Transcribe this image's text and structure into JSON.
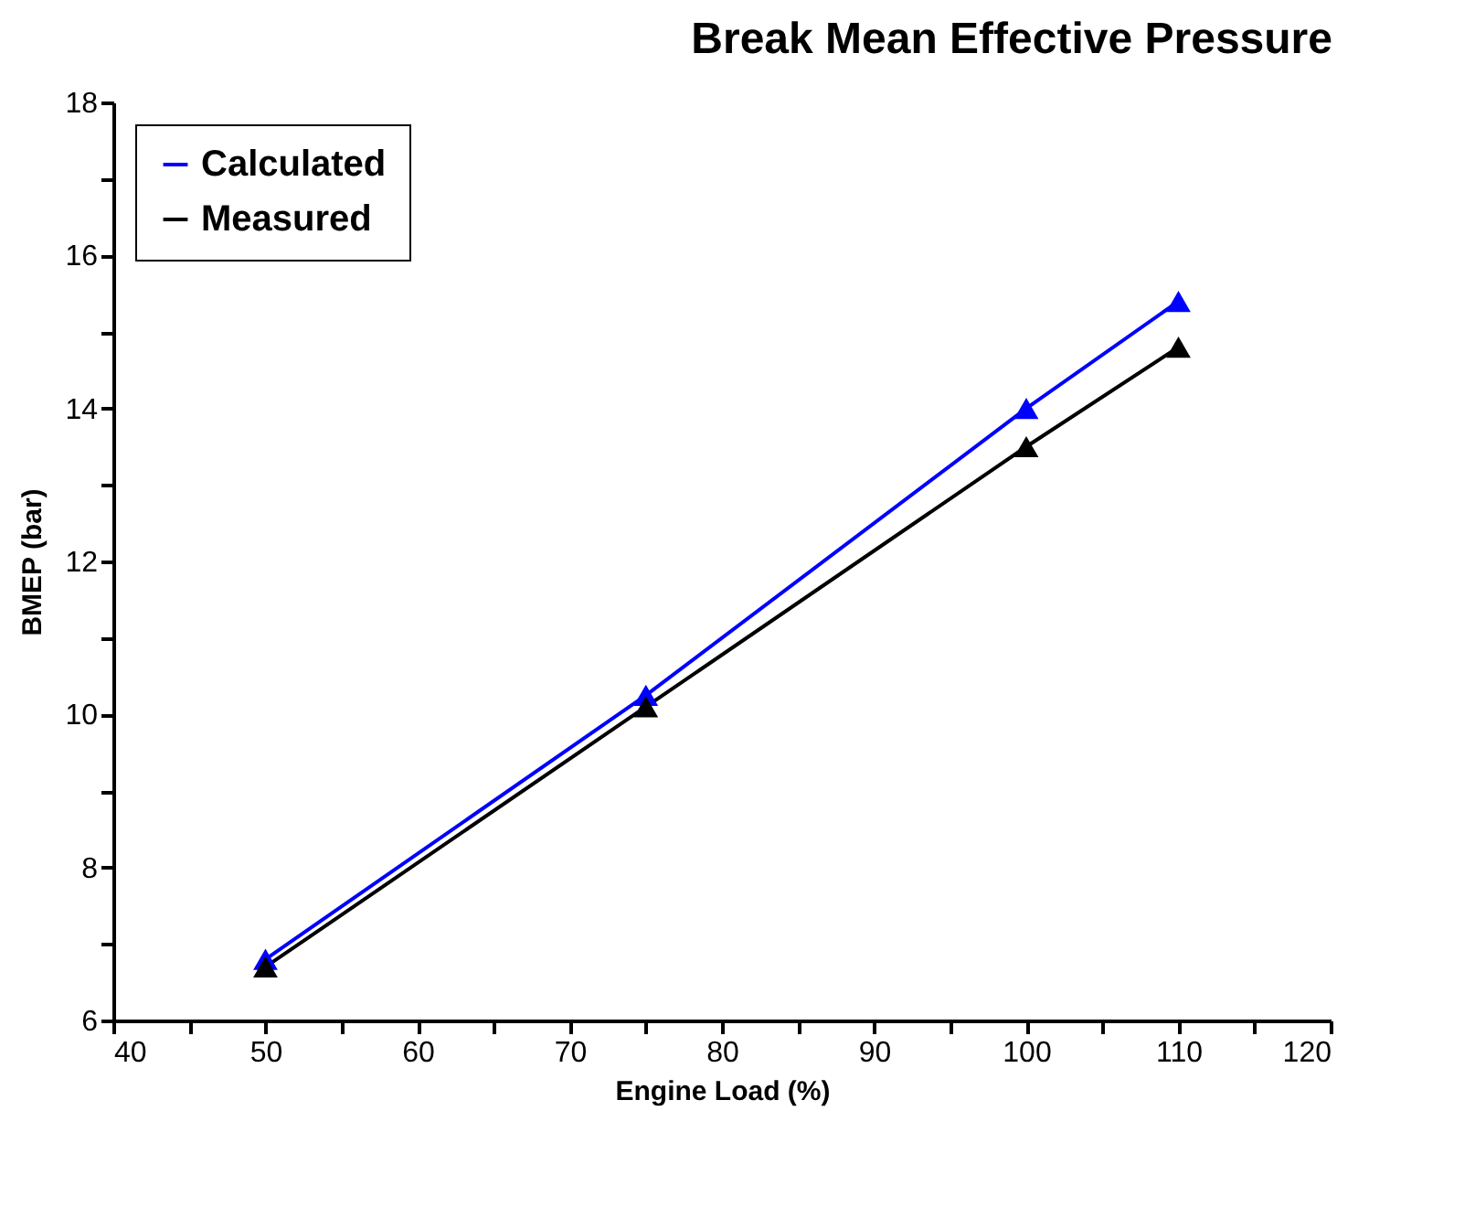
{
  "chart_data": {
    "type": "line",
    "title": "Break Mean Effective Pressure",
    "xlabel": "Engine Load (%)",
    "ylabel": "BMEP (bar)",
    "x": [
      50,
      75,
      100,
      110
    ],
    "series": [
      {
        "name": "Calculated",
        "color": "#0000ff",
        "values": [
          6.8,
          10.25,
          14.0,
          15.4
        ]
      },
      {
        "name": "Measured",
        "color": "#000000",
        "values": [
          6.7,
          10.1,
          13.5,
          14.8
        ]
      }
    ],
    "xlim": [
      40,
      120
    ],
    "xticks": [
      40,
      {
        "value": 45,
        "label": null
      },
      50,
      {
        "value": 55,
        "label": null
      },
      60,
      {
        "value": 65,
        "label": null
      },
      70,
      {
        "value": 75,
        "label": null
      },
      80,
      {
        "value": 85,
        "label": null
      },
      90,
      {
        "value": 95,
        "label": null
      },
      100,
      {
        "value": 105,
        "label": null
      },
      110,
      {
        "value": 115,
        "label": null
      },
      120
    ],
    "ylim": [
      6,
      18
    ],
    "yticks": [
      6,
      {
        "value": 7,
        "label": null
      },
      8,
      {
        "value": 9,
        "label": null
      },
      10,
      {
        "value": 11,
        "label": null
      },
      12,
      {
        "value": 13,
        "label": null
      },
      14,
      {
        "value": 15,
        "label": null
      },
      16,
      {
        "value": 17,
        "label": null
      },
      18
    ],
    "grid": false,
    "legend": "top left",
    "marker": "triangle",
    "line_style": "solid"
  }
}
